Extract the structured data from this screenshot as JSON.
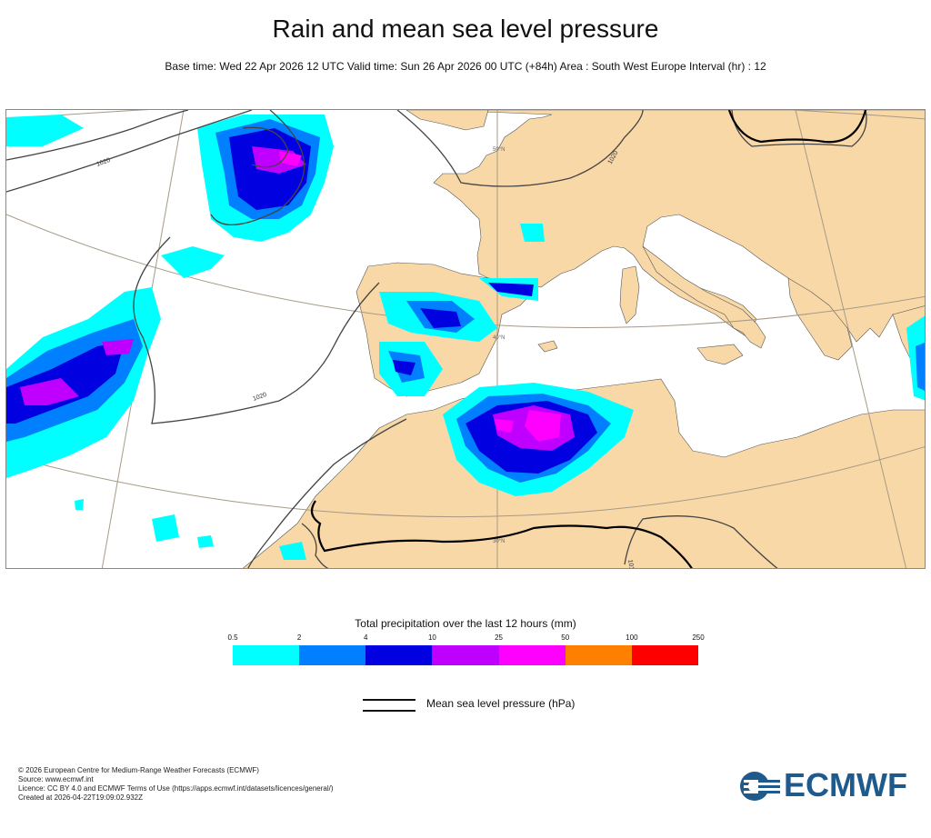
{
  "title": "Rain and mean sea level pressure",
  "subtitle": "Base time: Wed 22 Apr 2026 12 UTC Valid time: Sun 26 Apr 2026 00 UTC (+84h) Area : South West Europe Interval (hr) : 12",
  "map": {
    "isobar_labels": [
      "1020",
      "1020",
      "1020",
      "1010"
    ],
    "graticule_labels": [
      "50°N",
      "40°N",
      "30°N"
    ]
  },
  "legend": {
    "title": "Total precipitation over the last 12 hours (mm)",
    "ticks": [
      "0.5",
      "2",
      "4",
      "10",
      "25",
      "50",
      "100",
      "250"
    ],
    "colors": [
      "#00ffff",
      "#0080ff",
      "#0000e0",
      "#c000ff",
      "#ff00ff",
      "#ff8000",
      "#ff0000"
    ],
    "line_label": "Mean sea level pressure (hPa)"
  },
  "footer": {
    "lines": [
      "© 2026 European Centre for Medium-Range Weather Forecasts (ECMWF)",
      "Source: www.ecmwf.int",
      "Licence: CC BY 4.0 and ECMWF Terms of Use (https://apps.ecmwf.int/datasets/licences/general/)",
      "Created at 2026-04-22T19:09:02.932Z"
    ]
  },
  "logo": {
    "text": "ECMWF",
    "color": "#1f5a8c"
  },
  "colors": {
    "land": "#f9d8a8",
    "sea": "#ffffff"
  }
}
